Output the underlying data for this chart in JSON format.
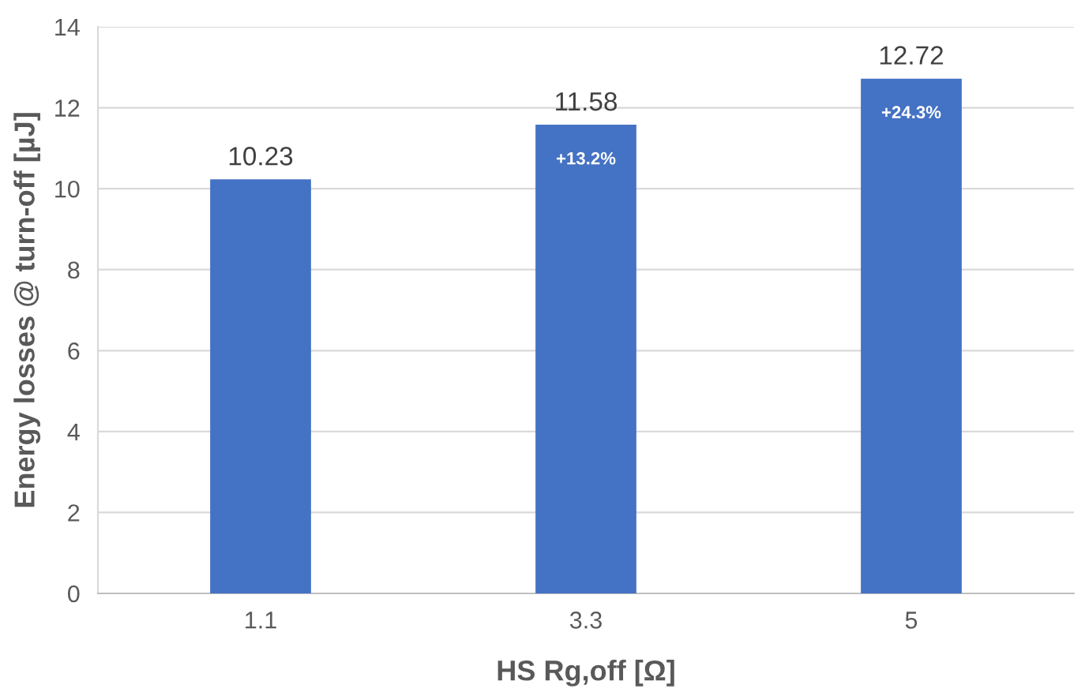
{
  "chart_data": {
    "type": "bar",
    "xlabel": "HS Rg,off [Ω]",
    "ylabel": "Energy losses @ turn-off [µJ]",
    "categories": [
      "1.1",
      "3.3",
      "5"
    ],
    "values": [
      10.23,
      11.58,
      12.72
    ],
    "color": "#4472c4",
    "ylim": [
      0,
      14
    ],
    "yticks": [
      0,
      2,
      4,
      6,
      8,
      10,
      12,
      14
    ],
    "grid": "y",
    "data_labels": true,
    "annotations": [
      {
        "text": "+13.2%",
        "x": "3.3",
        "y": 11.58
      },
      {
        "text": "+24.3%",
        "x": "5",
        "y": 12.72
      }
    ]
  }
}
